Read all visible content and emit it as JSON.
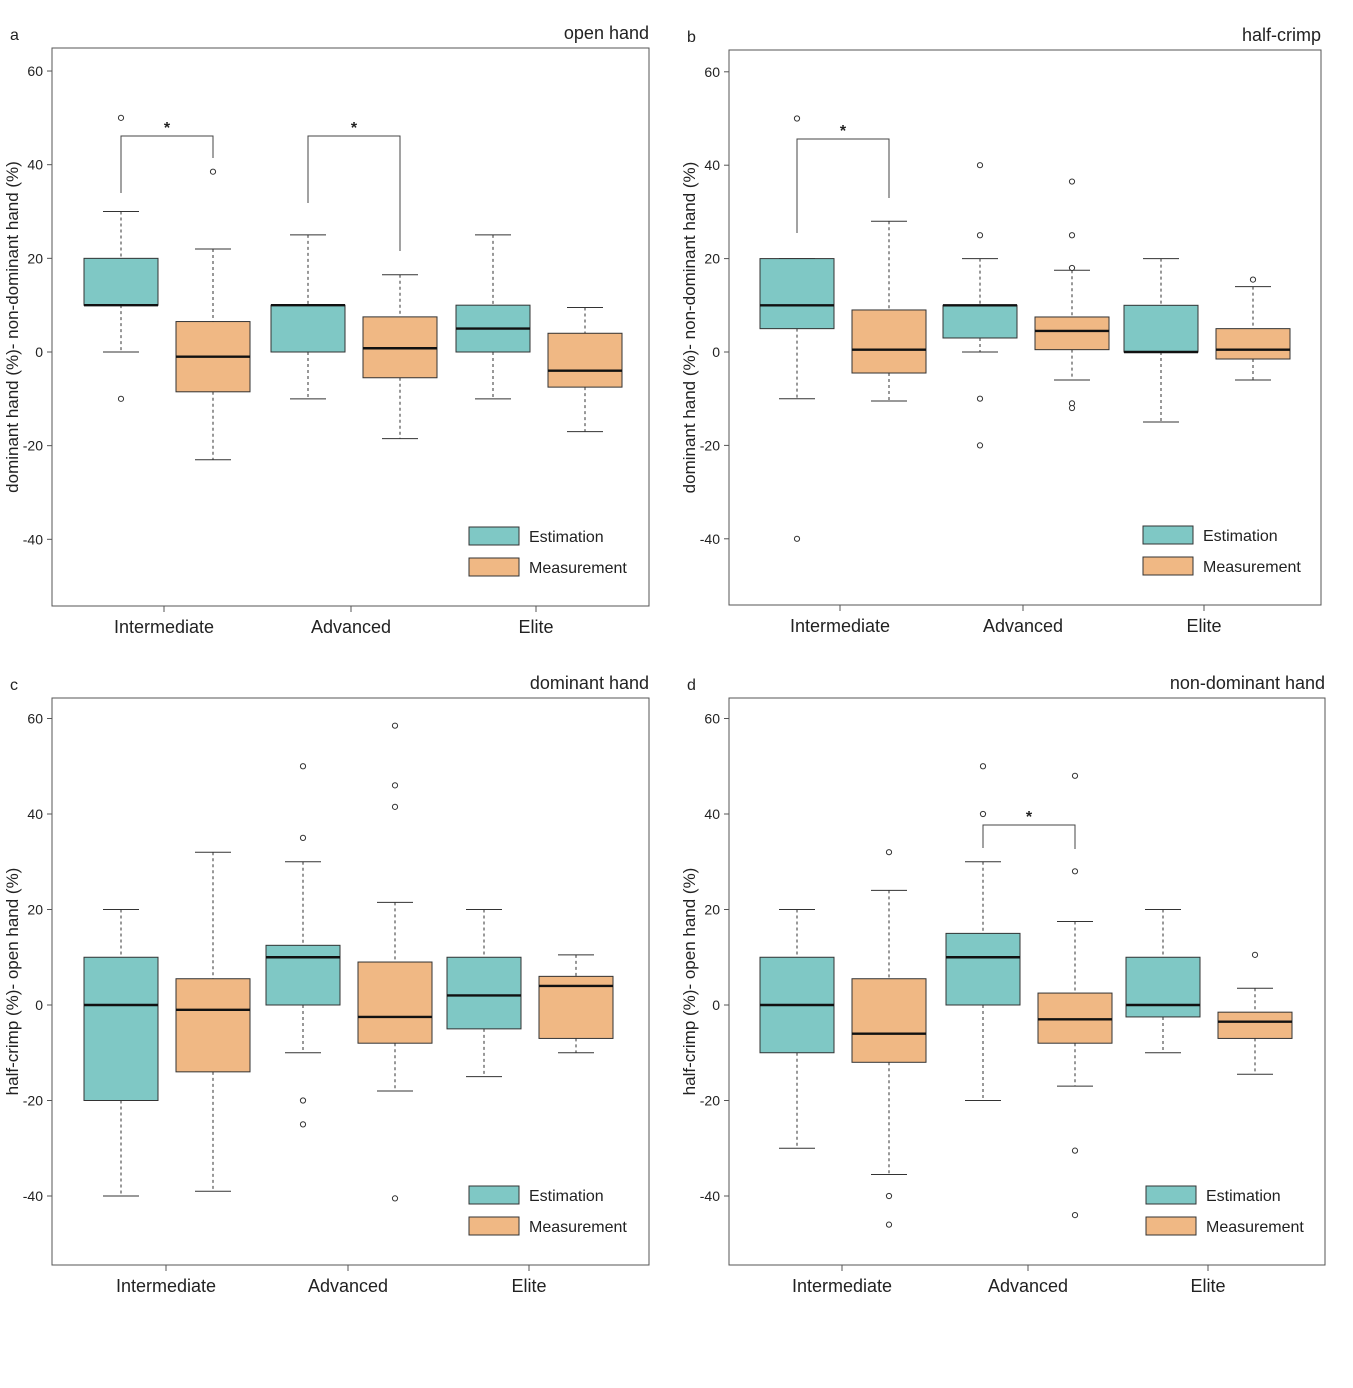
{
  "figure": {
    "legend": {
      "estimation": "Estimation",
      "measurement": "Measurement"
    },
    "colors": {
      "estimation": "#7fc8c5",
      "measurement": "#f0b884",
      "stroke": "#333333"
    },
    "categories": [
      "Intermediate",
      "Advanced",
      "Elite"
    ],
    "y_ticks": [
      "60",
      "40",
      "20",
      "0",
      "-20",
      "-40"
    ]
  },
  "chart_data": [
    {
      "type": "box",
      "panel": "a",
      "title": "open hand",
      "ylabel": "dominant hand (%)- non-dominant hand (%)",
      "ylim": [
        -55,
        65
      ],
      "legend_position": "bottom-right",
      "categories": [
        "Intermediate",
        "Advanced",
        "Elite"
      ],
      "series": [
        {
          "name": "Estimation",
          "boxes": [
            {
              "whisker_low": 0,
              "q1": 10,
              "median": 10,
              "q3": 20,
              "whisker_high": 30,
              "outliers": [
                50,
                -10
              ]
            },
            {
              "whisker_low": -10,
              "q1": 0,
              "median": 10,
              "q3": 10,
              "whisker_high": 25,
              "outliers": []
            },
            {
              "whisker_low": -10,
              "q1": 0,
              "median": 5,
              "q3": 10,
              "whisker_high": 25,
              "outliers": []
            }
          ]
        },
        {
          "name": "Measurement",
          "boxes": [
            {
              "whisker_low": -23,
              "q1": -8.5,
              "median": -1,
              "q3": 6.5,
              "whisker_high": 22,
              "outliers": [
                38.5
              ]
            },
            {
              "whisker_low": -18.5,
              "q1": -5.5,
              "median": 0.8,
              "q3": 7.5,
              "whisker_high": 16.5,
              "outliers": []
            },
            {
              "whisker_low": -17,
              "q1": -7.5,
              "median": -4,
              "q3": 4,
              "whisker_high": 9.5,
              "outliers": []
            }
          ]
        }
      ],
      "significance": [
        {
          "category": 0,
          "label": "*"
        },
        {
          "category": 1,
          "label": "*"
        }
      ]
    },
    {
      "type": "box",
      "panel": "b",
      "title": "half-crimp",
      "ylabel": "dominant hand (%)- non-dominant hand (%)",
      "ylim": [
        -55,
        65
      ],
      "legend_position": "bottom-right",
      "categories": [
        "Intermediate",
        "Advanced",
        "Elite"
      ],
      "series": [
        {
          "name": "Estimation",
          "boxes": [
            {
              "whisker_low": -10,
              "q1": 5,
              "median": 10,
              "q3": 20,
              "whisker_high": 20,
              "outliers": [
                50,
                -40
              ]
            },
            {
              "whisker_low": 0,
              "q1": 3,
              "median": 10,
              "q3": 10,
              "whisker_high": 20,
              "outliers": [
                40,
                25,
                -10,
                -20
              ]
            },
            {
              "whisker_low": -15,
              "q1": 0,
              "median": 0,
              "q3": 10,
              "whisker_high": 20,
              "outliers": []
            }
          ]
        },
        {
          "name": "Measurement",
          "boxes": [
            {
              "whisker_low": -10.5,
              "q1": -4.5,
              "median": 0.5,
              "q3": 9,
              "whisker_high": 28,
              "outliers": []
            },
            {
              "whisker_low": -6,
              "q1": 0.5,
              "median": 4.5,
              "q3": 7.5,
              "whisker_high": 17.5,
              "outliers": [
                36.5,
                25,
                18,
                -11,
                -12
              ]
            },
            {
              "whisker_low": -6,
              "q1": -1.5,
              "median": 0.5,
              "q3": 5,
              "whisker_high": 14,
              "outliers": [
                15.5
              ]
            }
          ]
        }
      ],
      "significance": [
        {
          "category": 0,
          "label": "*"
        }
      ]
    },
    {
      "type": "box",
      "panel": "c",
      "title": "dominant hand",
      "ylabel": "half-crimp (%)- open hand (%)",
      "ylim": [
        -55,
        65
      ],
      "legend_position": "bottom-right",
      "categories": [
        "Intermediate",
        "Advanced",
        "Elite"
      ],
      "series": [
        {
          "name": "Estimation",
          "boxes": [
            {
              "whisker_low": -40,
              "q1": -20,
              "median": 0,
              "q3": 10,
              "whisker_high": 20,
              "outliers": []
            },
            {
              "whisker_low": -10,
              "q1": 0,
              "median": 10,
              "q3": 12.5,
              "whisker_high": 30,
              "outliers": [
                50,
                35,
                -20,
                -25
              ]
            },
            {
              "whisker_low": -15,
              "q1": -5,
              "median": 2,
              "q3": 10,
              "whisker_high": 20,
              "outliers": []
            }
          ]
        },
        {
          "name": "Measurement",
          "boxes": [
            {
              "whisker_low": -39,
              "q1": -14,
              "median": -1,
              "q3": 5.5,
              "whisker_high": 32,
              "outliers": []
            },
            {
              "whisker_low": -18,
              "q1": -8,
              "median": -2.5,
              "q3": 9,
              "whisker_high": 21.5,
              "outliers": [
                58.5,
                46,
                41.5,
                -40.5
              ]
            },
            {
              "whisker_low": -10,
              "q1": -7,
              "median": 4,
              "q3": 6,
              "whisker_high": 10.5,
              "outliers": []
            }
          ]
        }
      ],
      "significance": []
    },
    {
      "type": "box",
      "panel": "d",
      "title": "non-dominant hand",
      "ylabel": "half-crimp (%)- open hand (%)",
      "ylim": [
        -55,
        65
      ],
      "legend_position": "bottom-right",
      "categories": [
        "Intermediate",
        "Advanced",
        "Elite"
      ],
      "series": [
        {
          "name": "Estimation",
          "boxes": [
            {
              "whisker_low": -30,
              "q1": -10,
              "median": 0,
              "q3": 10,
              "whisker_high": 20,
              "outliers": []
            },
            {
              "whisker_low": -20,
              "q1": 0,
              "median": 10,
              "q3": 15,
              "whisker_high": 30,
              "outliers": [
                50,
                40
              ]
            },
            {
              "whisker_low": -10,
              "q1": -2.5,
              "median": 0,
              "q3": 10,
              "whisker_high": 20,
              "outliers": []
            }
          ]
        },
        {
          "name": "Measurement",
          "boxes": [
            {
              "whisker_low": -35.5,
              "q1": -12,
              "median": -6,
              "q3": 5.5,
              "whisker_high": 24,
              "outliers": [
                32,
                -40,
                -46
              ]
            },
            {
              "whisker_low": -17,
              "q1": -8,
              "median": -3,
              "q3": 2.5,
              "whisker_high": 17.5,
              "outliers": [
                48,
                28,
                -30.5,
                -44
              ]
            },
            {
              "whisker_low": -14.5,
              "q1": -7,
              "median": -3.5,
              "q3": -1.5,
              "whisker_high": 3.5,
              "outliers": [
                10.5
              ]
            }
          ]
        }
      ],
      "significance": [
        {
          "category": 1,
          "label": "*"
        }
      ]
    }
  ]
}
